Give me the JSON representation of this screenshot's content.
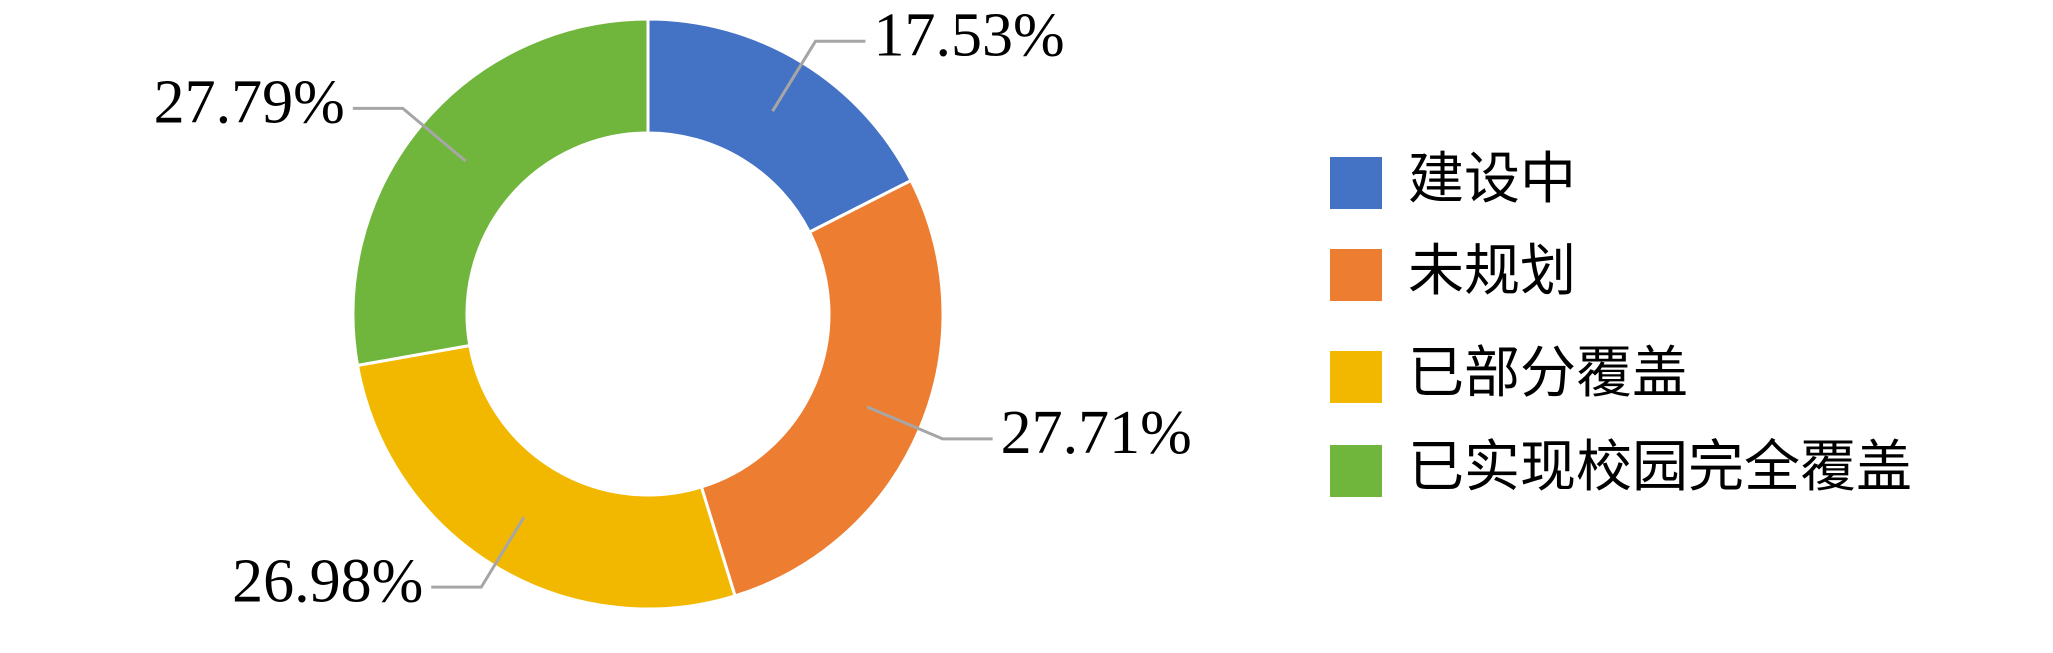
{
  "chart_data": {
    "type": "donut",
    "categories": [
      "建设中",
      "未规划",
      "已部分覆盖",
      "已实现校园完全覆盖"
    ],
    "values": [
      17.53,
      27.71,
      26.98,
      27.79
    ],
    "value_labels": [
      "17.53%",
      "27.71%",
      "26.98%",
      "27.79%"
    ],
    "colors": [
      "#4472c4",
      "#ed7d31",
      "#f2b800",
      "#70b53c"
    ],
    "legend": "right"
  }
}
